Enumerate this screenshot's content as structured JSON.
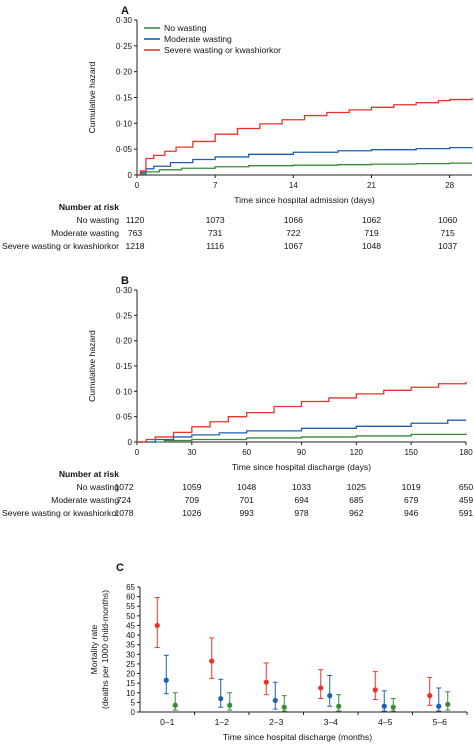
{
  "colors": {
    "no_wasting": "#3a8a3a",
    "moderate_wasting": "#1f5fb0",
    "severe_wasting": "#e8332a",
    "axis": "#222222"
  },
  "chart_data": [
    {
      "panel": "A",
      "type": "line",
      "xlabel": "Time since hospital admission (days)",
      "ylabel": "Cumulative hazard",
      "xlim": [
        0,
        30
      ],
      "ylim": [
        0,
        0.3
      ],
      "x_ticks": [
        0,
        7,
        14,
        21,
        28
      ],
      "x_tick_labels": [
        "0",
        "7",
        "14",
        "21",
        "28"
      ],
      "y_ticks": [
        0,
        0.05,
        0.1,
        0.15,
        0.2,
        0.25,
        0.3
      ],
      "y_tick_labels": [
        "0",
        "0·05",
        "0·10",
        "0·15",
        "0·20",
        "0·25",
        "0·30"
      ],
      "legend_position": "top-left",
      "series": [
        {
          "name": "No wasting",
          "key": "no_wasting",
          "x": [
            0,
            0.4,
            0.8,
            2,
            4,
            7,
            10,
            14,
            18,
            21,
            25,
            28,
            30
          ],
          "y": [
            0,
            0.002,
            0.006,
            0.01,
            0.013,
            0.016,
            0.018,
            0.019,
            0.02,
            0.021,
            0.022,
            0.023,
            0.023
          ]
        },
        {
          "name": "Moderate wasting",
          "key": "moderate_wasting",
          "x": [
            0,
            0.4,
            0.8,
            1.5,
            3,
            5,
            7,
            10,
            14,
            18,
            21,
            25,
            28,
            30
          ],
          "y": [
            0,
            0.005,
            0.012,
            0.017,
            0.024,
            0.03,
            0.035,
            0.04,
            0.044,
            0.047,
            0.049,
            0.051,
            0.053,
            0.054
          ]
        },
        {
          "name": "Severe wasting or kwashiorkor",
          "key": "severe_wasting",
          "x": [
            0,
            0.3,
            0.8,
            1.5,
            2.5,
            3.5,
            5,
            7,
            9,
            11,
            13,
            15,
            17,
            19,
            21,
            23,
            25,
            27,
            28,
            30
          ],
          "y": [
            0,
            0.008,
            0.032,
            0.038,
            0.046,
            0.054,
            0.065,
            0.079,
            0.09,
            0.099,
            0.107,
            0.115,
            0.121,
            0.126,
            0.131,
            0.136,
            0.14,
            0.144,
            0.146,
            0.149
          ]
        }
      ],
      "risk_table": {
        "header": "Number at risk",
        "rows": [
          {
            "label": "No wasting",
            "values": [
              "1120",
              "1073",
              "1066",
              "1062",
              "1060"
            ]
          },
          {
            "label": "Moderate wasting",
            "values": [
              "763",
              "731",
              "722",
              "719",
              "715"
            ]
          },
          {
            "label": "Severe wasting or kwashiorkor",
            "values": [
              "1218",
              "1116",
              "1067",
              "1048",
              "1037"
            ]
          }
        ]
      }
    },
    {
      "panel": "B",
      "type": "line",
      "xlabel": "Time since hospital discharge (days)",
      "ylabel": "Cumulative hazard",
      "xlim": [
        0,
        180
      ],
      "ylim": [
        0,
        0.3
      ],
      "x_ticks": [
        0,
        30,
        60,
        90,
        120,
        150,
        180
      ],
      "x_tick_labels": [
        "0",
        "30",
        "60",
        "90",
        "120",
        "150",
        "180"
      ],
      "y_ticks": [
        0,
        0.05,
        0.1,
        0.15,
        0.2,
        0.25,
        0.3
      ],
      "y_tick_labels": [
        "0",
        "0·05",
        "0·10",
        "0·15",
        "0·20",
        "0·25",
        "0·30"
      ],
      "series": [
        {
          "name": "No wasting",
          "key": "no_wasting",
          "x": [
            0,
            15,
            30,
            60,
            90,
            120,
            150,
            180
          ],
          "y": [
            0,
            0.003,
            0.005,
            0.008,
            0.01,
            0.012,
            0.015,
            0.017
          ]
        },
        {
          "name": "Moderate wasting",
          "key": "moderate_wasting",
          "x": [
            0,
            10,
            20,
            30,
            45,
            60,
            90,
            120,
            150,
            170,
            180
          ],
          "y": [
            0,
            0.005,
            0.01,
            0.014,
            0.018,
            0.022,
            0.027,
            0.031,
            0.037,
            0.043,
            0.043
          ]
        },
        {
          "name": "Severe wasting or kwashiorkor",
          "key": "severe_wasting",
          "x": [
            0,
            5,
            10,
            20,
            30,
            40,
            50,
            60,
            75,
            90,
            105,
            120,
            135,
            150,
            165,
            180
          ],
          "y": [
            0,
            0.005,
            0.01,
            0.019,
            0.03,
            0.04,
            0.05,
            0.058,
            0.07,
            0.08,
            0.087,
            0.095,
            0.102,
            0.108,
            0.115,
            0.119
          ]
        }
      ],
      "risk_table": {
        "header": "Number at risk",
        "rows": [
          {
            "label": "No wasting",
            "values": [
              "1072",
              "1059",
              "1048",
              "1033",
              "1025",
              "1019",
              "650"
            ]
          },
          {
            "label": "Moderate wasting",
            "values": [
              "724",
              "709",
              "701",
              "694",
              "685",
              "679",
              "459"
            ]
          },
          {
            "label": "Severe wasting or kwashiorkor",
            "values": [
              "1078",
              "1026",
              "993",
              "978",
              "962",
              "946",
              "591"
            ]
          }
        ]
      }
    },
    {
      "panel": "C",
      "type": "scatter",
      "xlabel": "Time since hospital discharge (months)",
      "ylabel": "Mortality rate (deaths per 1000 child-months)",
      "ylabel_lines": [
        "Mortality rate",
        "(deaths per 1000 child-months)"
      ],
      "ylim": [
        0,
        65
      ],
      "y_ticks": [
        0,
        5,
        10,
        15,
        20,
        25,
        30,
        35,
        40,
        45,
        50,
        55,
        60,
        65
      ],
      "y_tick_labels": [
        "0",
        "5",
        "10",
        "15",
        "20",
        "25",
        "30",
        "35",
        "40",
        "45",
        "50",
        "55",
        "60",
        "65"
      ],
      "categories": [
        "0–1",
        "1–2",
        "2–3",
        "3–4",
        "4–5",
        "5–6"
      ],
      "series": [
        {
          "name": "Severe wasting or kwashiorkor",
          "key": "severe_wasting",
          "values": [
            45,
            26.5,
            15.5,
            12.5,
            11.5,
            8.5
          ],
          "lower": [
            33.5,
            17.5,
            9,
            7,
            6.5,
            3.5
          ],
          "upper": [
            59.5,
            38.5,
            25.5,
            22,
            21,
            18
          ]
        },
        {
          "name": "Moderate wasting",
          "key": "moderate_wasting",
          "values": [
            16.5,
            7,
            6,
            8.5,
            3,
            3
          ],
          "lower": [
            9.5,
            2.5,
            1.5,
            3,
            0.5,
            0.5
          ],
          "upper": [
            29.5,
            17,
            15.5,
            19,
            11,
            12.5
          ]
        },
        {
          "name": "No wasting",
          "key": "no_wasting",
          "values": [
            3.5,
            3.5,
            2.5,
            3,
            2.5,
            4
          ],
          "lower": [
            1,
            1,
            0.5,
            0.5,
            0.5,
            1
          ],
          "upper": [
            10,
            10,
            8.5,
            9,
            7,
            10.5
          ]
        }
      ]
    }
  ]
}
